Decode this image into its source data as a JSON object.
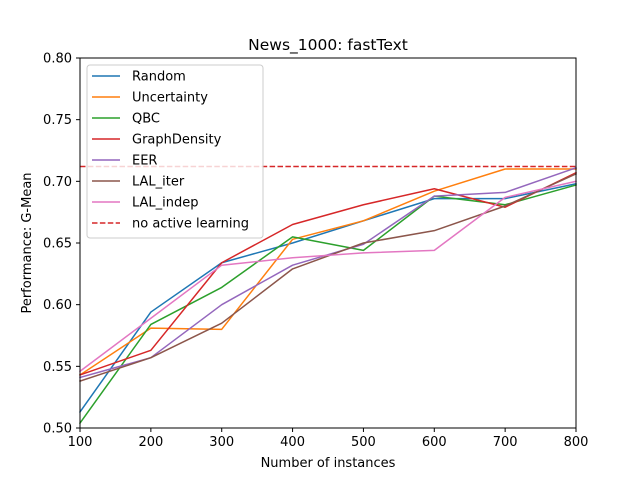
{
  "chart_data": {
    "type": "line",
    "title": "News_1000: fastText",
    "xlabel": "Number of instances",
    "ylabel": "Performance: G-Mean",
    "xlim": [
      100,
      800
    ],
    "ylim": [
      0.5,
      0.8
    ],
    "xticks": [
      100,
      200,
      300,
      400,
      500,
      600,
      700,
      800
    ],
    "xtick_labels": [
      "100",
      "200",
      "300",
      "400",
      "500",
      "600",
      "700",
      "800"
    ],
    "yticks": [
      0.5,
      0.55,
      0.6,
      0.65,
      0.7,
      0.75,
      0.8
    ],
    "ytick_labels": [
      "0.50",
      "0.55",
      "0.60",
      "0.65",
      "0.70",
      "0.75",
      "0.80"
    ],
    "grid": false,
    "legend_position": "top-left",
    "series": [
      {
        "name": "Random",
        "color": "#1f77b4",
        "x": [
          100,
          200,
          300,
          400,
          500,
          600,
          700,
          800
        ],
        "y": [
          0.513,
          0.594,
          0.634,
          0.65,
          0.668,
          0.686,
          0.686,
          0.698
        ]
      },
      {
        "name": "Uncertainty",
        "color": "#ff7f0e",
        "x": [
          100,
          200,
          300,
          400,
          500,
          600,
          700,
          800
        ],
        "y": [
          0.543,
          0.581,
          0.58,
          0.653,
          0.668,
          0.692,
          0.71,
          0.71
        ]
      },
      {
        "name": "QBC",
        "color": "#2ca02c",
        "x": [
          100,
          200,
          300,
          400,
          500,
          600,
          700,
          800
        ],
        "y": [
          0.504,
          0.584,
          0.614,
          0.655,
          0.644,
          0.688,
          0.681,
          0.697
        ]
      },
      {
        "name": "GraphDensity",
        "color": "#d62728",
        "x": [
          100,
          200,
          300,
          400,
          500,
          600,
          700,
          800
        ],
        "y": [
          0.543,
          0.563,
          0.634,
          0.665,
          0.681,
          0.694,
          0.679,
          0.707
        ]
      },
      {
        "name": "EER",
        "color": "#9467bd",
        "x": [
          100,
          200,
          300,
          400,
          500,
          600,
          700,
          800
        ],
        "y": [
          0.541,
          0.557,
          0.6,
          0.632,
          0.649,
          0.688,
          0.691,
          0.711
        ]
      },
      {
        "name": "LAL_iter",
        "color": "#8c564b",
        "x": [
          100,
          200,
          300,
          400,
          500,
          600,
          700,
          800
        ],
        "y": [
          0.538,
          0.557,
          0.585,
          0.629,
          0.65,
          0.66,
          0.68,
          0.706
        ]
      },
      {
        "name": "LAL_indep",
        "color": "#e377c2",
        "x": [
          100,
          200,
          300,
          400,
          500,
          600,
          700,
          800
        ],
        "y": [
          0.546,
          0.589,
          0.632,
          0.638,
          0.642,
          0.644,
          0.687,
          0.7
        ]
      },
      {
        "name": "no active learning",
        "color": "#d62728",
        "dashed": true,
        "x": [
          100,
          800
        ],
        "y": [
          0.712,
          0.712
        ]
      }
    ]
  }
}
